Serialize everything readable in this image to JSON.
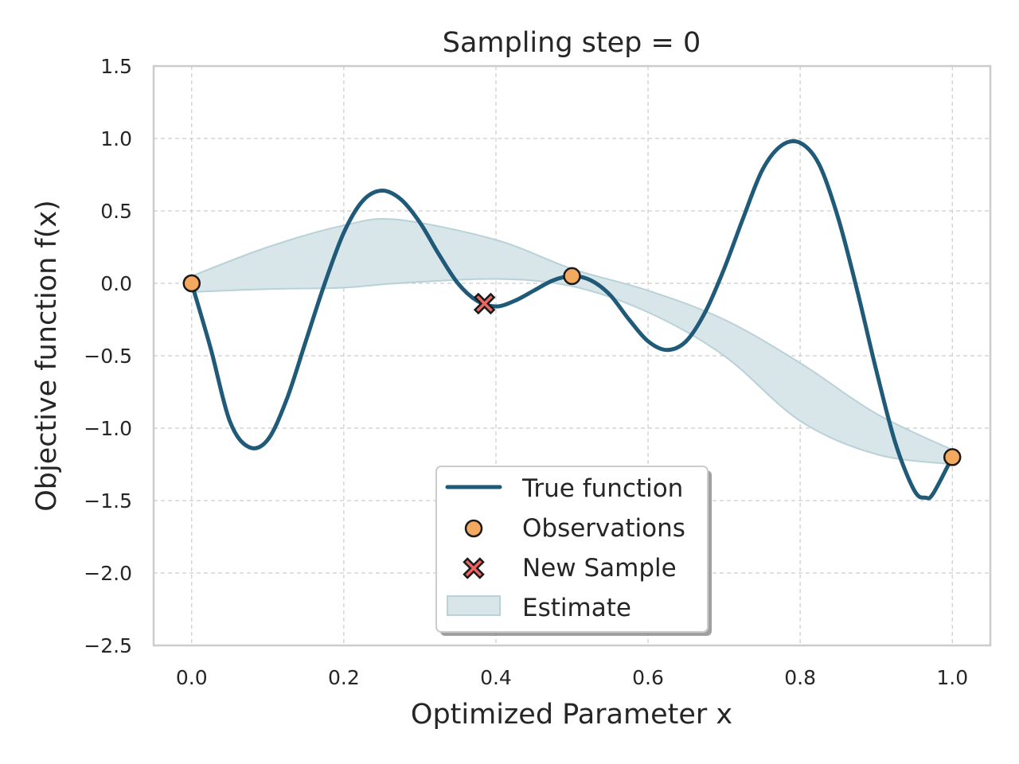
{
  "chart_data": {
    "type": "line",
    "title": "Sampling step =  0",
    "xlabel": "Optimized Parameter x",
    "ylabel": "Objective function f(x)",
    "xlim": [
      -0.05,
      1.05
    ],
    "ylim": [
      -2.5,
      1.5
    ],
    "grid": true,
    "xticks": [
      0.0,
      0.2,
      0.4,
      0.6,
      0.8,
      1.0
    ],
    "xtick_labels": [
      "0.0",
      "0.2",
      "0.4",
      "0.6",
      "0.8",
      "1.0"
    ],
    "yticks": [
      1.5,
      1.0,
      0.5,
      0.0,
      -0.5,
      -1.0,
      -1.5,
      -2.0,
      -2.5
    ],
    "ytick_labels": [
      "1.5",
      "1.0",
      "0.5",
      "0.0",
      "−0.5",
      "−1.0",
      "−1.5",
      "−2.0",
      "−2.5"
    ],
    "legend_position": "lower-center",
    "legend": [
      "True function",
      "Observations",
      "New Sample",
      "Estimate"
    ],
    "colors": {
      "true_function": "#1f5a78",
      "observations": "#f4a960",
      "new_sample": "#ef6461",
      "estimate": "#d8e5e9",
      "estimate_edge": "#b8d2d8"
    },
    "true_function": {
      "x": [
        0,
        0.025,
        0.05,
        0.075,
        0.1,
        0.125,
        0.15,
        0.175,
        0.2,
        0.225,
        0.25,
        0.275,
        0.3,
        0.325,
        0.35,
        0.375,
        0.4,
        0.425,
        0.45,
        0.475,
        0.5,
        0.525,
        0.55,
        0.575,
        0.6,
        0.625,
        0.65,
        0.675,
        0.7,
        0.725,
        0.75,
        0.775,
        0.8,
        0.825,
        0.85,
        0.875,
        0.9,
        0.925,
        0.95,
        0.965,
        0.975,
        1.0
      ],
      "y": [
        0,
        -0.45,
        -0.95,
        -1.13,
        -1.08,
        -0.8,
        -0.4,
        0.0,
        0.35,
        0.57,
        0.64,
        0.58,
        0.42,
        0.2,
        0.0,
        -0.12,
        -0.16,
        -0.12,
        -0.05,
        0.02,
        0.05,
        0.02,
        -0.08,
        -0.25,
        -0.4,
        -0.46,
        -0.4,
        -0.2,
        0.1,
        0.45,
        0.78,
        0.95,
        0.97,
        0.82,
        0.45,
        -0.05,
        -0.6,
        -1.1,
        -1.43,
        -1.48,
        -1.45,
        -1.2
      ]
    },
    "estimate": {
      "x": [
        0,
        0.1,
        0.2,
        0.27,
        0.4,
        0.5,
        0.6,
        0.7,
        0.8,
        0.9,
        1.0
      ],
      "upper": [
        0.05,
        0.25,
        0.4,
        0.44,
        0.3,
        0.1,
        -0.05,
        -0.25,
        -0.55,
        -0.9,
        -1.15
      ],
      "lower": [
        -0.06,
        -0.04,
        -0.03,
        0.0,
        0.03,
        -0.02,
        -0.2,
        -0.5,
        -0.95,
        -1.18,
        -1.25
      ]
    },
    "observations": [
      {
        "x": 0.0,
        "y": 0.0
      },
      {
        "x": 0.5,
        "y": 0.05
      },
      {
        "x": 1.0,
        "y": -1.2
      }
    ],
    "new_sample": {
      "x": 0.385,
      "y": -0.14
    }
  }
}
